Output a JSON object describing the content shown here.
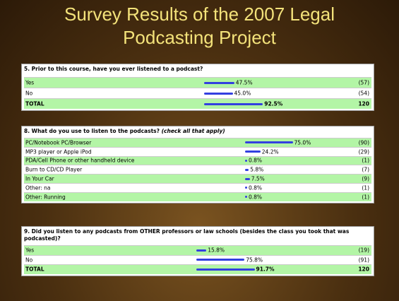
{
  "title": "Survey Results of the 2007 Legal Podcasting Project",
  "questions": [
    {
      "question": "5. Prior to this course, have you ever listened to a podcast?",
      "rows": [
        {
          "label": "Yes",
          "value": 47.5,
          "value_label": "47.5%",
          "count": "(57)"
        },
        {
          "label": "No",
          "value": 45.0,
          "value_label": "45.0%",
          "count": "(54)"
        }
      ],
      "total": {
        "label": "TOTAL",
        "value": 92.5,
        "value_label": "92.5%",
        "count": "120"
      }
    },
    {
      "question": "8. What do you use to listen to the podcasts?",
      "note": "(check all that apply)",
      "rows": [
        {
          "label": "PC/Notebook PC/Browser",
          "value": 75.0,
          "value_label": "75.0%",
          "count": "(90)"
        },
        {
          "label": "MP3 player or Apple iPod",
          "value": 24.2,
          "value_label": "24.2%",
          "count": "(29)"
        },
        {
          "label": "PDA/Cell Phone or other handheld device",
          "value": 0.8,
          "value_label": "0.8%",
          "count": "(1)"
        },
        {
          "label": "Burn to CD/CD Player",
          "value": 5.8,
          "value_label": "5.8%",
          "count": "(7)"
        },
        {
          "label": "In Your Car",
          "value": 7.5,
          "value_label": "7.5%",
          "count": "(9)"
        },
        {
          "label": "Other: na",
          "value": 0.8,
          "value_label": "0.8%",
          "count": "(1)"
        },
        {
          "label": "Other: Running",
          "value": 0.8,
          "value_label": "0.8%",
          "count": "(1)"
        }
      ]
    },
    {
      "question": "9. Did you listen to any podcasts from OTHER professors or law schools (besides the class you took that was podcasted)?",
      "rows": [
        {
          "label": "Yes",
          "value": 15.8,
          "value_label": "15.8%",
          "count": "(19)"
        },
        {
          "label": "No",
          "value": 75.8,
          "value_label": "75.8%",
          "count": "(91)"
        }
      ],
      "total": {
        "label": "TOTAL",
        "value": 91.7,
        "value_label": "91.7%",
        "count": "120"
      }
    }
  ]
}
